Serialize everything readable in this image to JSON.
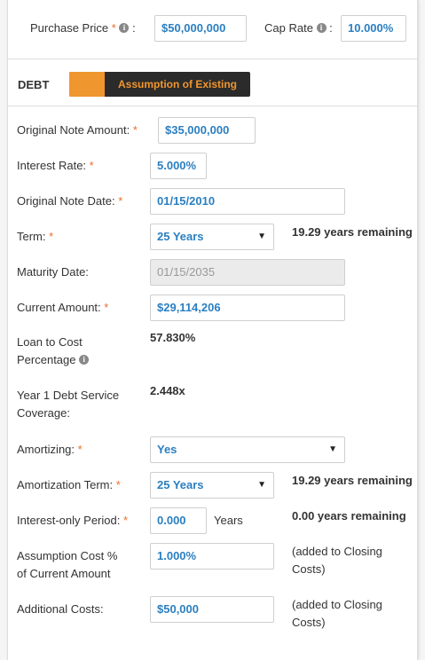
{
  "top": {
    "purchase_price_label": "Purchase Price",
    "purchase_price_value": "$50,000,000",
    "cap_rate_label": "Cap Rate",
    "cap_rate_value": "10.000%"
  },
  "debt": {
    "section_title": "DEBT",
    "type_toggle_label": "Assumption of Existing"
  },
  "fields": {
    "original_note_amount": {
      "label": "Original Note Amount:",
      "value": "$35,000,000"
    },
    "interest_rate": {
      "label": "Interest Rate:",
      "value": "5.000%"
    },
    "original_note_date": {
      "label": "Original Note Date:",
      "value": "01/15/2010"
    },
    "term": {
      "label": "Term:",
      "value": "25 Years",
      "note": "19.29 years remaining"
    },
    "maturity_date": {
      "label": "Maturity Date:",
      "value": "01/15/2035"
    },
    "current_amount": {
      "label": "Current Amount:",
      "value": "$29,114,206"
    },
    "loan_to_cost": {
      "label_line1": "Loan to Cost",
      "label_line2": "Percentage",
      "value": "57.830%"
    },
    "debt_service_coverage": {
      "label_line1": "Year 1 Debt Service",
      "label_line2": "Coverage:",
      "value": "2.448x"
    },
    "amortizing": {
      "label": "Amortizing:",
      "value": "Yes"
    },
    "amortization_term": {
      "label": "Amortization Term:",
      "value": "25 Years",
      "note": "19.29 years remaining"
    },
    "interest_only_period": {
      "label": "Interest-only Period:",
      "value": "0.000",
      "unit": "Years",
      "note": "0.00 years remaining"
    },
    "assumption_cost": {
      "label_line1": "Assumption Cost %",
      "label_line2": "of Current Amount",
      "value": "1.000%",
      "note_line1": "(added to Closing",
      "note_line2": "Costs)"
    },
    "additional_costs": {
      "label": "Additional Costs:",
      "value": "$50,000",
      "note_line1": "(added to Closing",
      "note_line2": "Costs)"
    }
  },
  "colors": {
    "accent": "#f0962e",
    "value_blue": "#2a7fc1",
    "required": "#e86f2c",
    "toggle_bg": "#2b2b2b"
  },
  "icons": {
    "info": "info-icon",
    "dropdown": "chevron-down-icon"
  }
}
